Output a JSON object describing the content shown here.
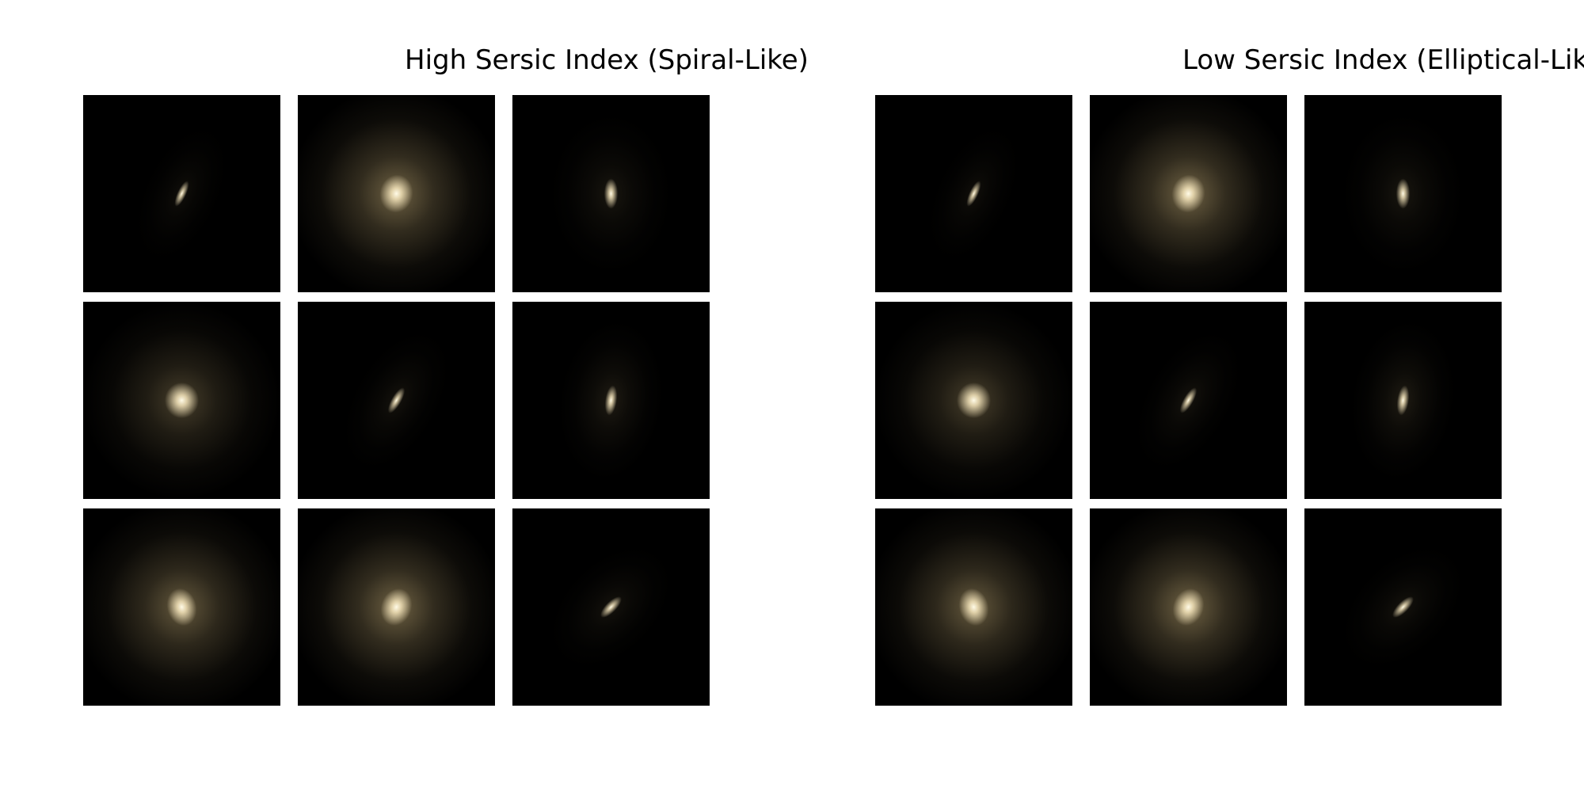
{
  "panels": [
    {
      "title": "High Sersic Index (Spiral-Like)",
      "galaxies": [
        {
          "halo": 0.08,
          "core": 0.9,
          "elong": 3.2,
          "angle": 25,
          "size": 0.55
        },
        {
          "halo": 0.55,
          "core": 1.0,
          "elong": 1.15,
          "angle": 10,
          "size": 1.0
        },
        {
          "halo": 0.12,
          "core": 0.95,
          "elong": 2.2,
          "angle": 0,
          "size": 0.65
        },
        {
          "halo": 0.35,
          "core": 1.0,
          "elong": 1.05,
          "angle": 0,
          "size": 0.9
        },
        {
          "halo": 0.1,
          "core": 0.9,
          "elong": 3.0,
          "angle": 30,
          "size": 0.6
        },
        {
          "halo": 0.15,
          "core": 0.95,
          "elong": 2.6,
          "angle": 8,
          "size": 0.65
        },
        {
          "halo": 0.5,
          "core": 1.0,
          "elong": 1.3,
          "angle": -15,
          "size": 1.0
        },
        {
          "halo": 0.55,
          "core": 1.0,
          "elong": 1.25,
          "angle": 20,
          "size": 1.0
        },
        {
          "halo": 0.1,
          "core": 0.9,
          "elong": 2.6,
          "angle": 45,
          "size": 0.55
        }
      ]
    },
    {
      "title": "Low Sersic Index (Elliptical-Like)",
      "galaxies": [
        {
          "halo": 0.08,
          "core": 0.9,
          "elong": 3.2,
          "angle": 25,
          "size": 0.55
        },
        {
          "halo": 0.55,
          "core": 1.0,
          "elong": 1.15,
          "angle": 10,
          "size": 1.0
        },
        {
          "halo": 0.12,
          "core": 0.95,
          "elong": 2.2,
          "angle": 0,
          "size": 0.65
        },
        {
          "halo": 0.35,
          "core": 1.0,
          "elong": 1.05,
          "angle": 0,
          "size": 0.9
        },
        {
          "halo": 0.1,
          "core": 0.9,
          "elong": 3.0,
          "angle": 30,
          "size": 0.6
        },
        {
          "halo": 0.15,
          "core": 0.95,
          "elong": 2.6,
          "angle": 8,
          "size": 0.65
        },
        {
          "halo": 0.5,
          "core": 1.0,
          "elong": 1.3,
          "angle": -15,
          "size": 1.0
        },
        {
          "halo": 0.55,
          "core": 1.0,
          "elong": 1.25,
          "angle": 20,
          "size": 1.0
        },
        {
          "halo": 0.1,
          "core": 0.9,
          "elong": 2.6,
          "angle": 45,
          "size": 0.55
        }
      ]
    }
  ],
  "colors": {
    "background": "#000000",
    "glow": "#f7e7bd",
    "halo": "#c9b17a",
    "core": "#fffbe8"
  }
}
